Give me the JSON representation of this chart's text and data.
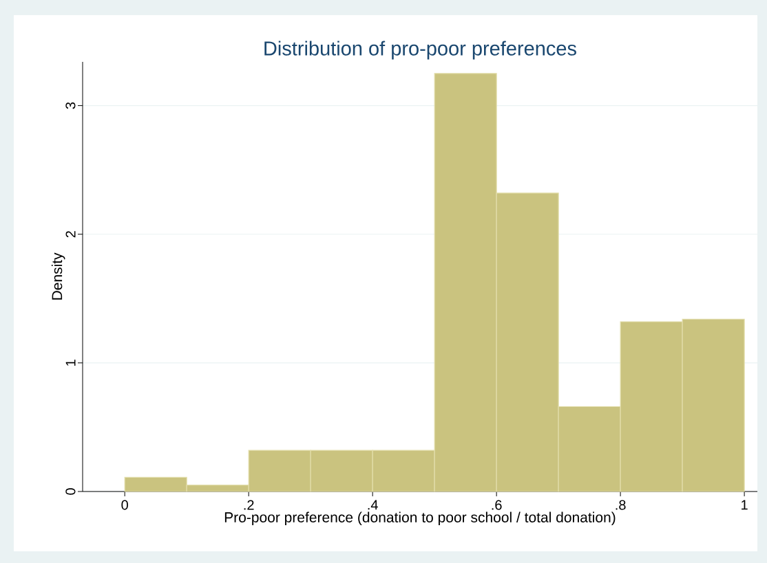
{
  "chart_data": {
    "type": "histogram",
    "title": "Distribution of pro-poor preferences",
    "xlabel": "Pro-poor preference (donation to poor school / total donation)",
    "ylabel": "Density",
    "bins": [
      0,
      0.1,
      0.2,
      0.3,
      0.4,
      0.5,
      0.6,
      0.7,
      0.8,
      0.9,
      1
    ],
    "values": [
      0.11,
      0.05,
      0.32,
      0.32,
      0.32,
      3.25,
      2.32,
      0.66,
      1.32,
      1.34
    ],
    "color": "#cac37f",
    "xlim": [
      -0.068,
      1.021
    ],
    "ylim": [
      0,
      3.34
    ],
    "xticks": [
      0,
      {
        "value": 0.2,
        "label": ".2"
      },
      {
        "value": 0.4,
        "label": ".4"
      },
      {
        "value": 0.6,
        "label": ".6"
      },
      {
        "value": 0.8,
        "label": ".8"
      },
      1
    ],
    "yticks": [
      0,
      1,
      2,
      3
    ],
    "grid": "y"
  }
}
